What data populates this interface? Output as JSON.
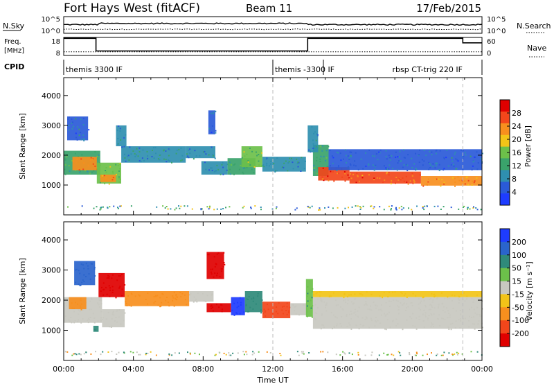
{
  "header": {
    "station": "Fort Hays West (fitACF)",
    "beam": "Beam 11",
    "date": "17/Feb/2015"
  },
  "status_panels": {
    "nsky_label": "N.Sky",
    "nsky_ticks": [
      "10^5",
      "10^0"
    ],
    "nsearch_label": "N.Search",
    "nsearch_ticks": [
      "10^5",
      "10^0"
    ],
    "freq_label": "Freq.",
    "freq_unit": "[MHz]",
    "freq_ticks": [
      18,
      8
    ],
    "nave_label": "Nave",
    "nave_ticks": [
      60,
      0
    ],
    "cpid_label": "CPID",
    "cpid_segments": [
      {
        "label": "themis 3300 IF",
        "start_hour": 0.0,
        "end_hour": 12.0
      },
      {
        "label": "themis -3300 IF",
        "start_hour": 12.0,
        "end_hour": 14.9
      },
      {
        "label": "rbsp CT-trig 220 IF",
        "start_hour": 14.9,
        "end_hour": 24.0
      }
    ],
    "freq_profile": [
      {
        "hour": 0.0,
        "mhz": 17.5
      },
      {
        "hour": 1.85,
        "mhz": 17.5
      },
      {
        "hour": 1.85,
        "mhz": 10.5
      },
      {
        "hour": 14.0,
        "mhz": 10.5
      },
      {
        "hour": 14.0,
        "mhz": 17.5
      },
      {
        "hour": 22.9,
        "mhz": 17.5
      },
      {
        "hour": 22.9,
        "mhz": 15.0
      },
      {
        "hour": 24.0,
        "mhz": 15.0
      }
    ],
    "nave_level": 12,
    "nsky_level_log": 2.6,
    "nsearch_level_log": 1.2
  },
  "chart_data": [
    {
      "type": "heatmap",
      "name": "power",
      "xlabel": "",
      "ylabel": "Slant Range [km]",
      "xlim": [
        0,
        24
      ],
      "ylim": [
        0,
        4600
      ],
      "yticks": [
        1000,
        2000,
        3000,
        4000
      ],
      "colorbar": {
        "label": "Power [dB]",
        "ticks": [
          4,
          8,
          12,
          16,
          20,
          24,
          28
        ],
        "range": [
          0,
          32
        ],
        "colors": [
          "#1e3cff",
          "#2a5ad8",
          "#2f8fb0",
          "#3aa36b",
          "#6cc04a",
          "#f2c418",
          "#f78f1e",
          "#f2461b",
          "#e00000"
        ]
      },
      "bands": [
        {
          "x0": 0.0,
          "x1": 2.1,
          "ylow": 1350,
          "yhigh": 2150,
          "value": 13
        },
        {
          "x0": 0.5,
          "x1": 1.9,
          "ylow": 1500,
          "yhigh": 1950,
          "value": 24
        },
        {
          "x0": 1.9,
          "x1": 3.3,
          "ylow": 1050,
          "yhigh": 1750,
          "value": 15
        },
        {
          "x0": 2.1,
          "x1": 3.0,
          "ylow": 1100,
          "yhigh": 1350,
          "value": 24
        },
        {
          "x0": 3.3,
          "x1": 7.0,
          "ylow": 1750,
          "yhigh": 2300,
          "value": 10
        },
        {
          "x0": 7.0,
          "x1": 8.7,
          "ylow": 1900,
          "yhigh": 2300,
          "value": 9
        },
        {
          "x0": 7.9,
          "x1": 9.4,
          "ylow": 1350,
          "yhigh": 1800,
          "value": 9
        },
        {
          "x0": 9.4,
          "x1": 11.0,
          "ylow": 1350,
          "yhigh": 1900,
          "value": 11
        },
        {
          "x0": 10.2,
          "x1": 11.4,
          "ylow": 1600,
          "yhigh": 2300,
          "value": 16
        },
        {
          "x0": 11.4,
          "x1": 13.9,
          "ylow": 1450,
          "yhigh": 1950,
          "value": 10
        },
        {
          "x0": 14.3,
          "x1": 15.2,
          "ylow": 1300,
          "yhigh": 2350,
          "value": 12
        },
        {
          "x0": 14.6,
          "x1": 16.4,
          "ylow": 1150,
          "yhigh": 1600,
          "value": 27
        },
        {
          "x0": 15.2,
          "x1": 24.0,
          "ylow": 1500,
          "yhigh": 2200,
          "value": 7
        },
        {
          "x0": 16.4,
          "x1": 20.5,
          "ylow": 1050,
          "yhigh": 1450,
          "value": 25
        },
        {
          "x0": 20.5,
          "x1": 24.0,
          "ylow": 980,
          "yhigh": 1300,
          "value": 23
        },
        {
          "x0": 0.2,
          "x1": 1.4,
          "ylow": 2500,
          "yhigh": 3300,
          "value": 7
        },
        {
          "x0": 3.0,
          "x1": 3.6,
          "ylow": 2300,
          "yhigh": 3000,
          "value": 8
        },
        {
          "x0": 8.3,
          "x1": 8.7,
          "ylow": 2700,
          "yhigh": 3500,
          "value": 6
        },
        {
          "x0": 14.0,
          "x1": 14.6,
          "ylow": 2100,
          "yhigh": 3000,
          "value": 9
        }
      ]
    },
    {
      "type": "heatmap",
      "name": "velocity",
      "xlabel": "Time UT",
      "ylabel": "Slant Range [km]",
      "xlim": [
        0,
        24
      ],
      "ylim": [
        0,
        4600
      ],
      "xticks": [
        "00:00",
        "04:00",
        "08:00",
        "12:00",
        "16:00",
        "20:00",
        "00:00"
      ],
      "yticks": [
        1000,
        2000,
        3000,
        4000
      ],
      "colorbar": {
        "label": "Velocity [m s⁻¹]",
        "ticks": [
          "200",
          "100",
          "50",
          "15",
          "-15",
          "-50",
          "-100",
          "-200"
        ],
        "colors": [
          "#1e3cff",
          "#2a64cc",
          "#2f8a7a",
          "#6cc04a",
          "#c8c8c0",
          "#f2c418",
          "#f78f1e",
          "#f2461b",
          "#e00000"
        ]
      },
      "bands": [
        {
          "x0": 0.0,
          "x1": 2.2,
          "ylow": 1250,
          "yhigh": 2100,
          "value": 0
        },
        {
          "x0": 0.3,
          "x1": 1.3,
          "ylow": 1700,
          "yhigh": 2100,
          "value": -40
        },
        {
          "x0": 2.2,
          "x1": 3.5,
          "ylow": 1100,
          "yhigh": 1700,
          "value": 0
        },
        {
          "x0": 2.0,
          "x1": 3.5,
          "ylow": 2100,
          "yhigh": 2900,
          "value": -250
        },
        {
          "x0": 3.5,
          "x1": 7.2,
          "ylow": 1800,
          "yhigh": 2300,
          "value": -40
        },
        {
          "x0": 7.2,
          "x1": 8.6,
          "ylow": 1950,
          "yhigh": 2300,
          "value": 0
        },
        {
          "x0": 8.2,
          "x1": 9.6,
          "ylow": 1600,
          "yhigh": 1900,
          "value": -250
        },
        {
          "x0": 9.6,
          "x1": 10.4,
          "ylow": 1500,
          "yhigh": 2100,
          "value": 180
        },
        {
          "x0": 10.4,
          "x1": 11.4,
          "ylow": 1600,
          "yhigh": 2300,
          "value": 70
        },
        {
          "x0": 11.4,
          "x1": 13.0,
          "ylow": 1400,
          "yhigh": 1950,
          "value": -90
        },
        {
          "x0": 13.0,
          "x1": 14.0,
          "ylow": 1500,
          "yhigh": 1900,
          "value": 0
        },
        {
          "x0": 13.9,
          "x1": 14.3,
          "ylow": 1450,
          "yhigh": 2700,
          "value": 30
        },
        {
          "x0": 14.3,
          "x1": 24.0,
          "ylow": 1050,
          "yhigh": 2100,
          "value": 0
        },
        {
          "x0": 14.3,
          "x1": 24.0,
          "ylow": 2100,
          "yhigh": 2300,
          "value": -20
        },
        {
          "x0": 0.6,
          "x1": 1.8,
          "ylow": 2500,
          "yhigh": 3300,
          "value": 120
        },
        {
          "x0": 8.2,
          "x1": 9.2,
          "ylow": 2700,
          "yhigh": 3600,
          "value": -250
        },
        {
          "x0": 1.7,
          "x1": 2.0,
          "ylow": 950,
          "yhigh": 1150,
          "value": 40
        }
      ]
    }
  ]
}
